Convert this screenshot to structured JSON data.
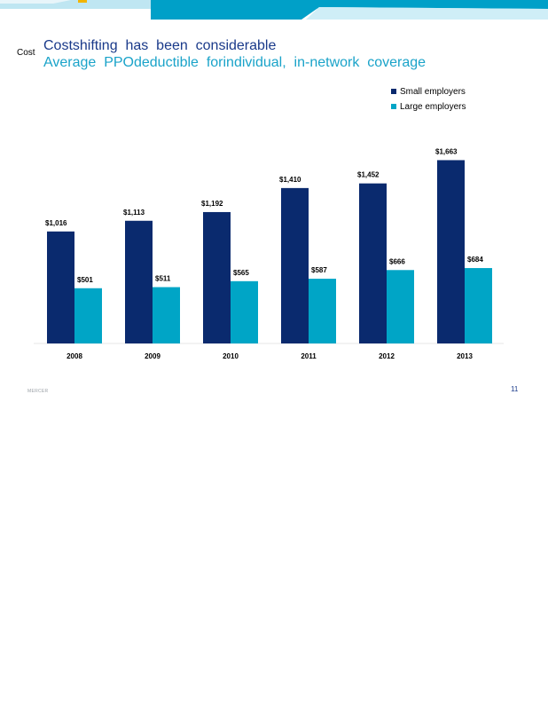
{
  "slide": {
    "section_label": "Cost",
    "title": "Costshifting  has  been  considerable",
    "subtitle": "Average  PPOdeductible  forindividual,  in-network  coverage",
    "footer_brand": "MERCER",
    "page_number": "11"
  },
  "colors": {
    "small": "#0a2a6e",
    "large": "#00a5c6",
    "banner_dark": "#00a0c8",
    "banner_light": "#bfe6f2"
  },
  "chart_data": {
    "type": "bar",
    "categories": [
      "2008",
      "2009",
      "2010",
      "2011",
      "2012",
      "2013"
    ],
    "series": [
      {
        "name": "Small employers",
        "values": [
          1016,
          1113,
          1192,
          1410,
          1452,
          1663
        ],
        "labels": [
          "$1,016",
          "$1,113",
          "$1,192",
          "$1,410",
          "$1,452",
          "$1,663"
        ]
      },
      {
        "name": "Large employers",
        "values": [
          501,
          511,
          565,
          587,
          666,
          684
        ],
        "labels": [
          "$501",
          "$511",
          "$565",
          "$587",
          "$666",
          "$684"
        ]
      }
    ],
    "ylim": [
      0,
      1800
    ],
    "grid": false,
    "legend": "top-right"
  }
}
